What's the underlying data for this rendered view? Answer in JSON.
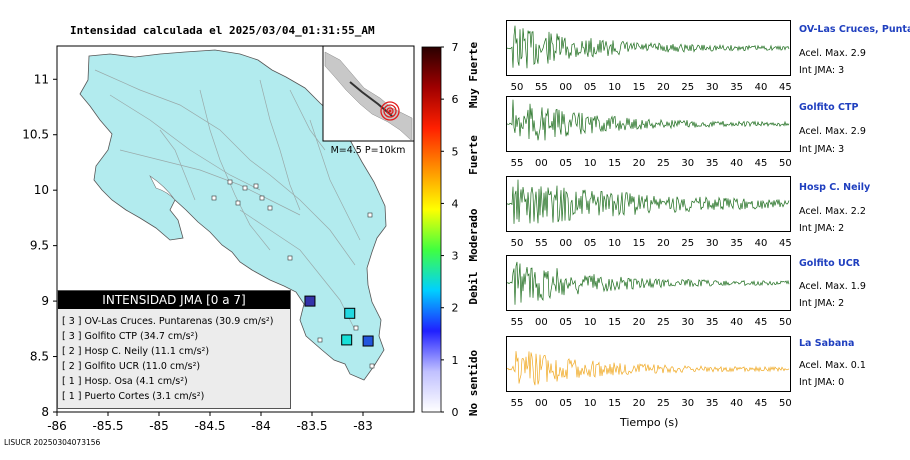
{
  "map": {
    "title": "Intensidad calculada el 2025/03/04_01:31:55_AM",
    "y_ticks": [
      "11",
      "10.5",
      "10",
      "9.5",
      "9",
      "8.5",
      "8"
    ],
    "x_ticks": [
      "-86",
      "-85.5",
      "-85",
      "-84.5",
      "-84",
      "-83.5",
      "-83"
    ],
    "lat_range": [
      8,
      11.3
    ],
    "lon_range": [
      -86,
      -82.5
    ],
    "land_color": "#b2ebee",
    "inset_caption": "M=4.5 P=10km",
    "stations": [
      {
        "lat": 8.89,
        "lon": -83.13,
        "color": "#22d7e0",
        "label": "Puntarenas"
      },
      {
        "lat": 8.65,
        "lon": -83.16,
        "color": "#19e0d8",
        "label": "Golfito CTP"
      },
      {
        "lat": 8.64,
        "lon": -82.95,
        "color": "#2255dd",
        "label": "Hosp C. Neily"
      },
      {
        "lat": 9.0,
        "lon": -83.52,
        "color": "#3333aa",
        "label": "Osa"
      }
    ]
  },
  "scale": {
    "numbers": [
      "7",
      "6",
      "5",
      "4",
      "3",
      "2",
      "1",
      "0"
    ],
    "labels": [
      "Muy Fuerte",
      "Fuerte",
      "Moderado",
      "Debil",
      "No sentido"
    ],
    "colors": [
      "#2a0000",
      "#a00000",
      "#ff2000",
      "#ff9000",
      "#ffff00",
      "#40ff40",
      "#00d0ff",
      "#2020ff",
      "#c0c0ff",
      "#ffffff"
    ]
  },
  "legend": {
    "header": "INTENSIDAD JMA [0 a 7]",
    "rows": [
      "[ 3 ]  OV-Las Cruces. Puntarenas (30.9 cm/s²)",
      "[ 3 ]  Golfito CTP (34.7 cm/s²)",
      "[ 2 ]  Hosp C. Neily (11.1 cm/s²)",
      "[ 2 ]  Golfito UCR (11.0 cm/s²)",
      "[ 1 ]  Hosp. Osa (4.1 cm/s²)",
      "[ 1 ]  Puerto Cortes (3.1 cm/s²)"
    ]
  },
  "footer": "LISUCR 20250304073156",
  "traces": {
    "time_label": "Tiempo (s)",
    "stations": [
      {
        "name": "OV-Las Cruces, Puntar",
        "acel": "Acel. Max. 2.9",
        "int": "Int JMA: 3",
        "color": "#1a6b1a",
        "ticks": [
          "50",
          "55",
          "00",
          "05",
          "10",
          "15",
          "20",
          "25",
          "30",
          "35",
          "40",
          "45"
        ]
      },
      {
        "name": "Golfito CTP",
        "acel": "Acel. Max. 2.9",
        "int": "Int JMA: 3",
        "color": "#1a6b1a",
        "ticks": [
          "55",
          "00",
          "05",
          "10",
          "15",
          "20",
          "25",
          "30",
          "35",
          "40",
          "45",
          "50"
        ]
      },
      {
        "name": "Hosp C. Neily",
        "acel": "Acel. Max. 2.2",
        "int": "Int JMA: 2",
        "color": "#1a6b1a",
        "ticks": [
          "50",
          "55",
          "00",
          "05",
          "10",
          "15",
          "20",
          "25",
          "30",
          "35",
          "40",
          "45"
        ]
      },
      {
        "name": "Golfito UCR",
        "acel": "Acel. Max. 1.9",
        "int": "Int JMA: 2",
        "color": "#1a6b1a",
        "ticks": [
          "55",
          "00",
          "05",
          "10",
          "15",
          "20",
          "25",
          "30",
          "35",
          "40",
          "45",
          "50"
        ]
      },
      {
        "name": "La Sabana",
        "acel": "Acel. Max. 0.1",
        "int": "Int JMA: 0",
        "color": "#f0a820",
        "ticks": [
          "55",
          "00",
          "05",
          "10",
          "15",
          "20",
          "25",
          "30",
          "35",
          "40",
          "45",
          "50"
        ]
      }
    ]
  }
}
